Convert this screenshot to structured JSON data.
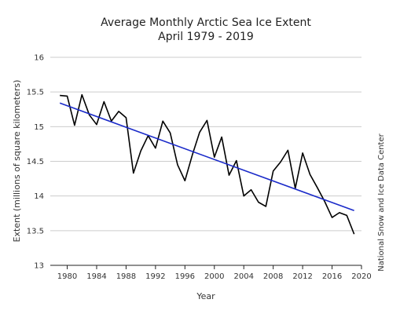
{
  "chart_data": {
    "type": "line",
    "title": "Average Monthly Arctic Sea Ice Extent",
    "subtitle": "April 1979 - 2019",
    "xlabel": "Year",
    "ylabel": "Extent (millions of square kilometers)",
    "source": "National Snow and Ice Data Center",
    "xlim": [
      1977.7,
      2020
    ],
    "ylim": [
      13,
      16
    ],
    "xticks": [
      1980,
      1984,
      1988,
      1992,
      1996,
      2000,
      2004,
      2008,
      2012,
      2016,
      2020
    ],
    "yticks": [
      13,
      13.5,
      14,
      14.5,
      15,
      15.5,
      16
    ],
    "grid": true,
    "series": [
      {
        "color": "#000000",
        "x": [
          1979,
          1980,
          1981,
          1982,
          1983,
          1984,
          1985,
          1986,
          1987,
          1988,
          1989,
          1990,
          1991,
          1992,
          1993,
          1994,
          1995,
          1996,
          1997,
          1998,
          1999,
          2000,
          2001,
          2002,
          2003,
          2004,
          2005,
          2006,
          2007,
          2008,
          2009,
          2010,
          2011,
          2012,
          2013,
          2014,
          2015,
          2016,
          2017,
          2018,
          2019
        ],
        "y": [
          15.45,
          15.44,
          15.02,
          15.46,
          15.17,
          15.03,
          15.36,
          15.08,
          15.22,
          15.13,
          14.33,
          14.65,
          14.87,
          14.69,
          15.08,
          14.91,
          14.45,
          14.22,
          14.59,
          14.92,
          15.09,
          14.56,
          14.85,
          14.3,
          14.51,
          14.0,
          14.09,
          13.91,
          13.85,
          14.36,
          14.49,
          14.66,
          14.11,
          14.62,
          14.31,
          14.12,
          13.92,
          13.69,
          13.76,
          13.72,
          13.45
        ]
      },
      {
        "color": "#1a2ac9",
        "x": [
          1979,
          2019
        ],
        "y": [
          15.34,
          13.79
        ]
      }
    ]
  }
}
